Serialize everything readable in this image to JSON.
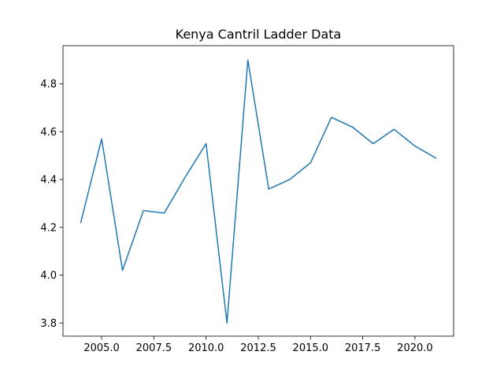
{
  "chart_data": {
    "type": "line",
    "title": "Kenya Cantril Ladder Data",
    "xlabel": "",
    "ylabel": "",
    "xlim": [
      2003.15,
      2021.85
    ],
    "ylim": [
      3.745,
      4.96
    ],
    "x_ticks": [
      2005.0,
      2007.5,
      2010.0,
      2012.5,
      2015.0,
      2017.5,
      2020.0
    ],
    "x_tick_labels": [
      "2005.0",
      "2007.5",
      "2010.0",
      "2012.5",
      "2015.0",
      "2017.5",
      "2020.0"
    ],
    "y_ticks": [
      3.8,
      4.0,
      4.2,
      4.4,
      4.6,
      4.8
    ],
    "y_tick_labels": [
      "3.8",
      "4.0",
      "4.2",
      "4.4",
      "4.6",
      "4.8"
    ],
    "grid": false,
    "series": [
      {
        "color": "#1f77b4",
        "x": [
          2004,
          2005,
          2006,
          2007,
          2008,
          2009,
          2010,
          2011,
          2012,
          2013,
          2014,
          2015,
          2016,
          2017,
          2018,
          2019,
          2020,
          2021
        ],
        "y": [
          4.22,
          4.57,
          4.02,
          4.27,
          4.26,
          4.41,
          4.55,
          3.8,
          4.9,
          4.36,
          4.4,
          4.47,
          4.66,
          4.62,
          4.55,
          4.61,
          4.54,
          4.49
        ]
      }
    ]
  }
}
